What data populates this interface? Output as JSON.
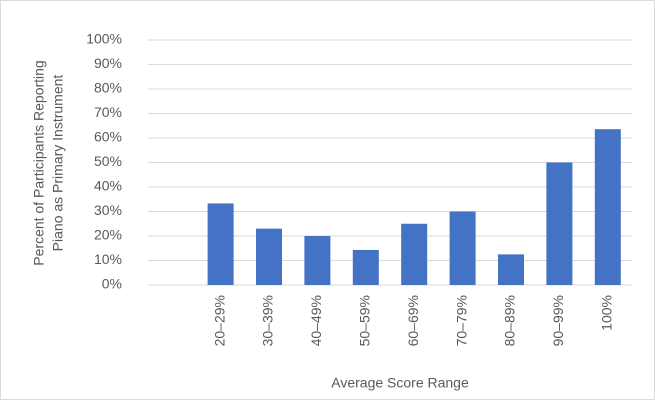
{
  "chart_data": {
    "type": "bar",
    "y_label": [
      "Percent of Participants Reporting",
      "Piano as Primary Instrument"
    ],
    "x_label": "Average Score Range",
    "categories": [
      null,
      "20–29%",
      "30–39%",
      "40–49%",
      "50–59%",
      "60–69%",
      "70–79%",
      "80–89%",
      "90–99%",
      "100%"
    ],
    "values": [
      null,
      33.3,
      23,
      20,
      14.3,
      25,
      30,
      12.5,
      50,
      63.6
    ],
    "color": "#4472c4",
    "ylim": [
      0,
      100
    ],
    "yticks": [
      {
        "value": 0,
        "label": "0%"
      },
      {
        "value": 10,
        "label": "10%"
      },
      {
        "value": 20,
        "label": "20%"
      },
      {
        "value": 30,
        "label": "30%"
      },
      {
        "value": 40,
        "label": "40%"
      },
      {
        "value": 50,
        "label": "50%"
      },
      {
        "value": 60,
        "label": "60%"
      },
      {
        "value": 70,
        "label": "70%"
      },
      {
        "value": 80,
        "label": "80%"
      },
      {
        "value": 90,
        "label": "90%"
      },
      {
        "value": 100,
        "label": "100%"
      }
    ],
    "grid": true
  }
}
